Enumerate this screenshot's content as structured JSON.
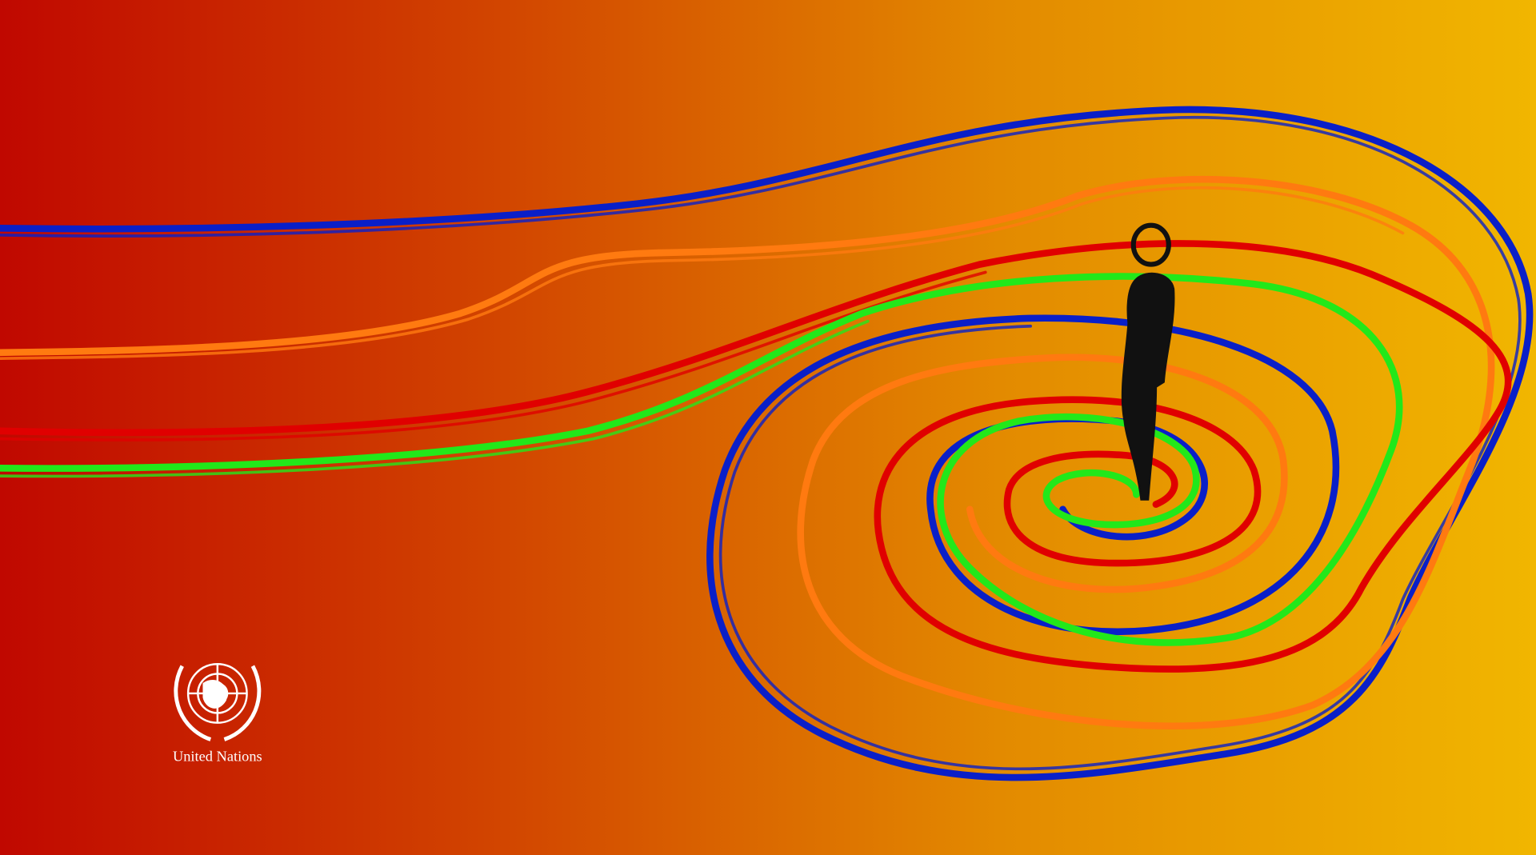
{
  "logo": {
    "label": "United Nations"
  }
}
